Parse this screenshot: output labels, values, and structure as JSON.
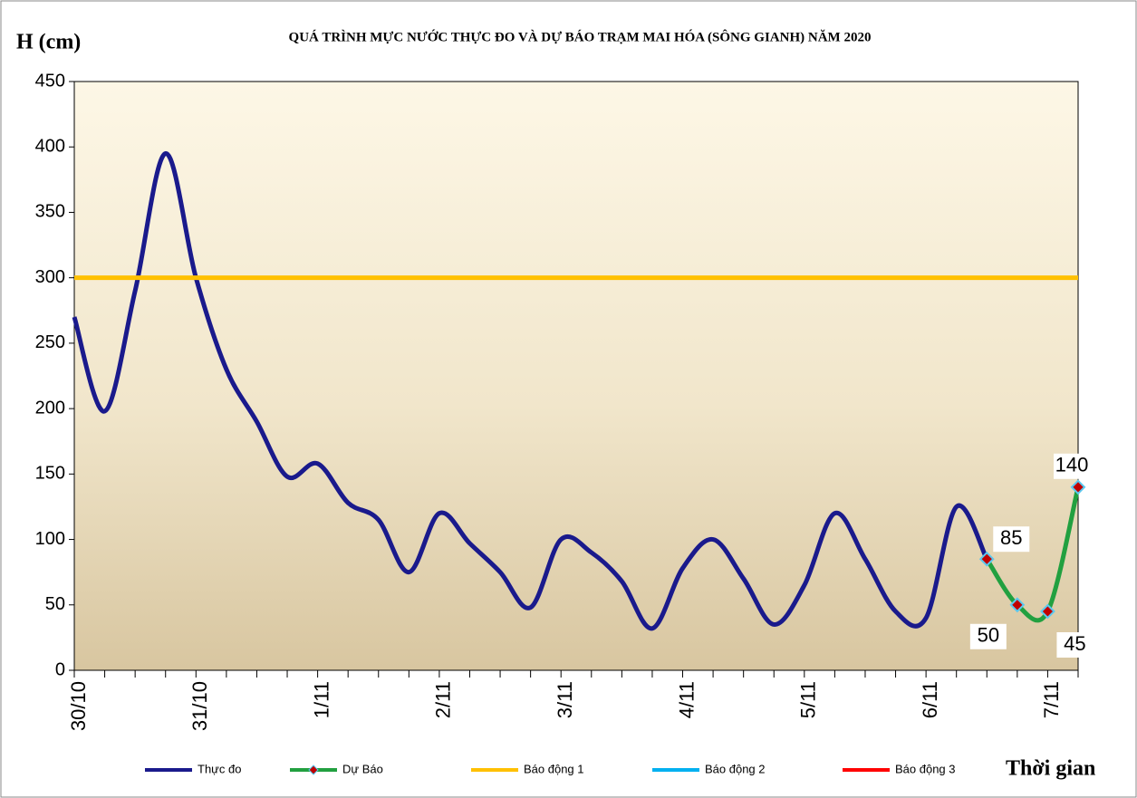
{
  "chart_data": {
    "type": "line",
    "title": "QUÁ TRÌNH MỰC NƯỚC THỰC ĐO VÀ DỰ BÁO TRẠM MAI HÓA (SÔNG GIANH) NĂM 2020",
    "y_label": "H (cm)",
    "x_label": "Thời gian",
    "categories": [
      "30/10",
      null,
      null,
      null,
      "31/10",
      null,
      null,
      null,
      "1/11",
      null,
      null,
      null,
      "2/11",
      null,
      null,
      null,
      "3/11",
      null,
      null,
      null,
      "4/11",
      null,
      null,
      null,
      "5/11",
      null,
      null,
      null,
      "6/11",
      null,
      null,
      null,
      "7/11",
      null
    ],
    "series": [
      {
        "name": "Thực đo",
        "color": "#1a1a8c",
        "smooth": true,
        "values": [
          270,
          198,
          290,
          395,
          300,
          230,
          190,
          148,
          158,
          128,
          115,
          75,
          120,
          97,
          75,
          48,
          100,
          90,
          68,
          32,
          78,
          100,
          70,
          35,
          65,
          120,
          85,
          45,
          40,
          125,
          85,
          null,
          null,
          null
        ]
      },
      {
        "name": "Dự Báo",
        "color": "#22a040",
        "smooth": true,
        "markers": true,
        "show_values": true,
        "values": [
          null,
          null,
          null,
          null,
          null,
          null,
          null,
          null,
          null,
          null,
          null,
          null,
          null,
          null,
          null,
          null,
          null,
          null,
          null,
          null,
          null,
          null,
          null,
          null,
          null,
          null,
          null,
          null,
          null,
          null,
          85,
          50,
          45,
          140
        ]
      },
      {
        "name": "Báo động 1",
        "color": "#ffc000",
        "values": [
          300,
          300,
          300,
          300,
          300,
          300,
          300,
          300,
          300,
          300,
          300,
          300,
          300,
          300,
          300,
          300,
          300,
          300,
          300,
          300,
          300,
          300,
          300,
          300,
          300,
          300,
          300,
          300,
          300,
          300,
          300,
          300,
          300,
          300
        ]
      },
      {
        "name": "Báo động 2",
        "color": "#00b0f0",
        "values": [
          null,
          null,
          null,
          null,
          null,
          null,
          null,
          null,
          null,
          null,
          null,
          null,
          null,
          null,
          null,
          null,
          null,
          null,
          null,
          null,
          null,
          null,
          null,
          null,
          null,
          null,
          null,
          null,
          null,
          null,
          null,
          null,
          null,
          null
        ]
      },
      {
        "name": "Báo động 3",
        "color": "#ff0000",
        "values": [
          null,
          null,
          null,
          null,
          null,
          null,
          null,
          null,
          null,
          null,
          null,
          null,
          null,
          null,
          null,
          null,
          null,
          null,
          null,
          null,
          null,
          null,
          null,
          null,
          null,
          null,
          null,
          null,
          null,
          null,
          null,
          null,
          null,
          null
        ]
      }
    ],
    "ylim": [
      0,
      450
    ],
    "yticks": [
      0,
      50,
      100,
      150,
      200,
      250,
      300,
      350,
      400,
      450
    ],
    "grid": false,
    "legend": "bottom"
  }
}
